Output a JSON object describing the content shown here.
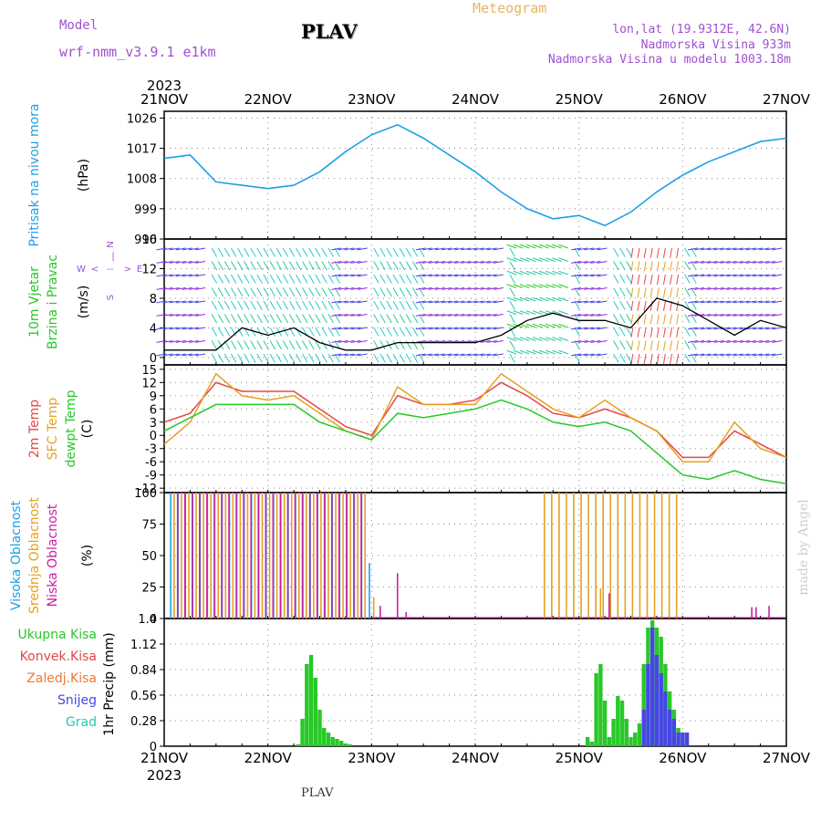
{
  "header": {
    "model_label": "Model",
    "model_name": "wrf-nmm_v3.9.1  e1km",
    "station": "PLAV",
    "product": "Meteogram",
    "lonlat": "lon,lat (19.9312E, 42.6N)",
    "elevation": "Nadmorska Visina 933m",
    "model_elevation": "Nadmorska Visina u modelu 1003.18m",
    "footer_station": "PLAV",
    "credit": "made by Angel"
  },
  "time_axis": {
    "year": "2023",
    "labels": [
      "21NOV",
      "22NOV",
      "23NOV",
      "24NOV",
      "25NOV",
      "26NOV",
      "27NOV"
    ]
  },
  "colors": {
    "pressure": "#1ea0e6",
    "temp2m": "#e64646",
    "sfc": "#e6a020",
    "dew": "#28c828",
    "high_cloud": "#1ea0e6",
    "mid_cloud": "#e6a020",
    "low_cloud": "#c820a0",
    "total_precip": "#28c828",
    "conv_precip": "#e64646",
    "frozen_precip": "#f07830",
    "snow": "#4646e6",
    "graupel": "#28c8b4",
    "wind_speed": "#000000"
  },
  "panels": {
    "pressure": {
      "ylabel_main": "Pritisak na nivou mora",
      "unit": "(hPa)"
    },
    "wind": {
      "ylabel_a": "10m Vjetar",
      "ylabel_b": "Brzina i Pravac",
      "unit": "(m/s)",
      "compass": [
        "N",
        "S",
        "W",
        "E",
        "<",
        "--",
        ">",
        "|"
      ]
    },
    "temp": {
      "ylabel_a": "2m Temp",
      "ylabel_b": "SFC Temp",
      "ylabel_c": "dewpt Temp",
      "unit": "(C)"
    },
    "cloud": {
      "ylabel_a": "Visoka Oblacnost",
      "ylabel_b": "Srednja Oblacnost",
      "ylabel_c": "Niska Oblacnost",
      "unit": "(%)"
    },
    "precip": {
      "ylabel": "1hr Precip",
      "unit": "(mm)",
      "legend": [
        "Ukupna Kisa",
        "Konvek.Kisa",
        "Zaledj.Kisa",
        "Snijeg",
        "Grad"
      ]
    }
  },
  "chart_data": [
    {
      "type": "line",
      "title": "",
      "ylabel": "Pritisak na nivou mora (hPa)",
      "ylim": [
        990,
        1028
      ],
      "ticks": [
        990,
        999,
        1008,
        1017,
        1026
      ],
      "x": [
        0,
        6,
        12,
        18,
        24,
        30,
        36,
        42,
        48,
        54,
        60,
        66,
        72,
        78,
        84,
        90,
        96,
        102,
        108,
        114,
        120,
        126,
        132,
        138,
        144
      ],
      "series": [
        {
          "name": "Pritisak na nivou mora",
          "values": [
            1014,
            1015,
            1007,
            1006,
            1005,
            1006,
            1010,
            1016,
            1021,
            1024,
            1020,
            1015,
            1010,
            1004,
            999,
            996,
            997,
            994,
            998,
            1004,
            1009,
            1013,
            1016,
            1019,
            1020
          ]
        }
      ]
    },
    {
      "type": "line",
      "title": "",
      "ylabel": "10m Vjetar Brzina i Pravac (m/s)",
      "ylim": [
        -1,
        16
      ],
      "ticks": [
        0,
        4,
        8,
        12,
        16
      ],
      "x": [
        0,
        6,
        12,
        18,
        24,
        30,
        36,
        42,
        48,
        54,
        60,
        66,
        72,
        78,
        84,
        90,
        96,
        102,
        108,
        114,
        120,
        126,
        132,
        138,
        144
      ],
      "series": [
        {
          "name": "wind speed",
          "values": [
            1,
            1,
            1,
            4,
            3,
            4,
            2,
            1,
            1,
            2,
            2,
            2,
            2,
            3,
            5,
            6,
            5,
            5,
            4,
            8,
            7,
            5,
            3,
            5,
            4
          ]
        }
      ]
    },
    {
      "type": "line",
      "title": "",
      "ylabel": "Temp (C)",
      "ylim": [
        -13,
        16
      ],
      "ticks": [
        -12,
        -9,
        -6,
        -3,
        0,
        3,
        6,
        9,
        12,
        15
      ],
      "x": [
        0,
        6,
        12,
        18,
        24,
        30,
        36,
        42,
        48,
        54,
        60,
        66,
        72,
        78,
        84,
        90,
        96,
        102,
        108,
        114,
        120,
        126,
        132,
        138,
        144
      ],
      "series": [
        {
          "name": "2m Temp",
          "values": [
            3,
            5,
            12,
            10,
            10,
            10,
            6,
            2,
            0,
            9,
            7,
            7,
            8,
            12,
            9,
            5,
            4,
            6,
            4,
            1,
            -5,
            -5,
            1,
            -2,
            -5
          ]
        },
        {
          "name": "SFC Temp",
          "values": [
            -2,
            3,
            14,
            9,
            8,
            9,
            5,
            1,
            -1,
            11,
            7,
            7,
            7,
            14,
            10,
            6,
            4,
            8,
            4,
            1,
            -6,
            -6,
            3,
            -3,
            -5
          ]
        },
        {
          "name": "dewpt Temp",
          "values": [
            1,
            4,
            7,
            7,
            7,
            7,
            3,
            1,
            -1,
            5,
            4,
            5,
            6,
            8,
            6,
            3,
            2,
            3,
            1,
            -4,
            -9,
            -10,
            -8,
            -10,
            -11
          ]
        }
      ]
    },
    {
      "type": "bar",
      "title": "",
      "ylabel": "Oblacnost (%)",
      "ylim": [
        0,
        100
      ],
      "ticks": [
        0,
        25,
        50,
        75,
        100
      ],
      "segments": [
        {
          "name": "Visoka Oblacnost",
          "start": 1.5,
          "end": 47,
          "step": 1.7,
          "value": 100
        },
        {
          "name": "Srednja Oblacnost",
          "start": 2.3,
          "end": 47,
          "step": 1.7,
          "value": 100
        },
        {
          "name": "Niska Oblacnost",
          "start": 3.1,
          "end": 47,
          "step": 1.7,
          "value": 100
        },
        {
          "name": "Srednja Oblacnost",
          "start": 88,
          "end": 120,
          "step": 1.7,
          "value": 100
        }
      ],
      "extras": [
        {
          "name": "Visoka Oblacnost",
          "x": 47.5,
          "value": 44
        },
        {
          "name": "Srednja Oblacnost",
          "x": 48.5,
          "value": 17
        },
        {
          "name": "Niska Oblacnost",
          "x": 50,
          "value": 10
        },
        {
          "name": "Niska Oblacnost",
          "x": 54,
          "value": 36
        },
        {
          "name": "Niska Oblacnost",
          "x": 56,
          "value": 5
        },
        {
          "name": "Srednja Oblacnost",
          "x": 101,
          "value": 24
        },
        {
          "name": "Niska Oblacnost",
          "x": 103,
          "value": 20
        },
        {
          "name": "Niska Oblacnost",
          "x": 136,
          "value": 9
        },
        {
          "name": "Niska Oblacnost",
          "x": 137,
          "value": 9
        },
        {
          "name": "Niska Oblacnost",
          "x": 140,
          "value": 10
        }
      ]
    },
    {
      "type": "bar",
      "title": "",
      "ylabel": "1hr Precip (mm)",
      "ylim": [
        0,
        1.4
      ],
      "ticks": [
        0,
        0.28,
        0.56,
        0.84,
        1.12,
        1.4
      ],
      "series": [
        {
          "name": "Ukupna Kisa",
          "x": [
            31,
            32,
            33,
            34,
            35,
            36,
            37,
            38,
            39,
            40,
            41,
            42,
            43,
            98,
            99,
            100,
            101,
            102,
            103,
            104,
            105,
            106,
            107,
            108,
            109,
            110,
            111,
            112,
            113,
            114,
            115,
            116,
            117,
            118,
            119
          ],
          "values": [
            0.02,
            0.3,
            0.9,
            1.0,
            0.75,
            0.4,
            0.2,
            0.15,
            0.1,
            0.08,
            0.06,
            0.03,
            0.02,
            0.1,
            0.05,
            0.8,
            0.9,
            0.5,
            0.1,
            0.3,
            0.55,
            0.5,
            0.3,
            0.1,
            0.15,
            0.25,
            0.9,
            1.3,
            1.38,
            1.3,
            1.2,
            0.9,
            0.6,
            0.4,
            0.2
          ]
        },
        {
          "name": "Snijeg",
          "x": [
            111,
            112,
            113,
            114,
            115,
            116,
            117,
            118,
            119,
            120,
            121
          ],
          "values": [
            0.4,
            0.9,
            1.3,
            1.0,
            0.8,
            0.6,
            0.4,
            0.3,
            0.15,
            0.15,
            0.15
          ]
        }
      ]
    }
  ]
}
